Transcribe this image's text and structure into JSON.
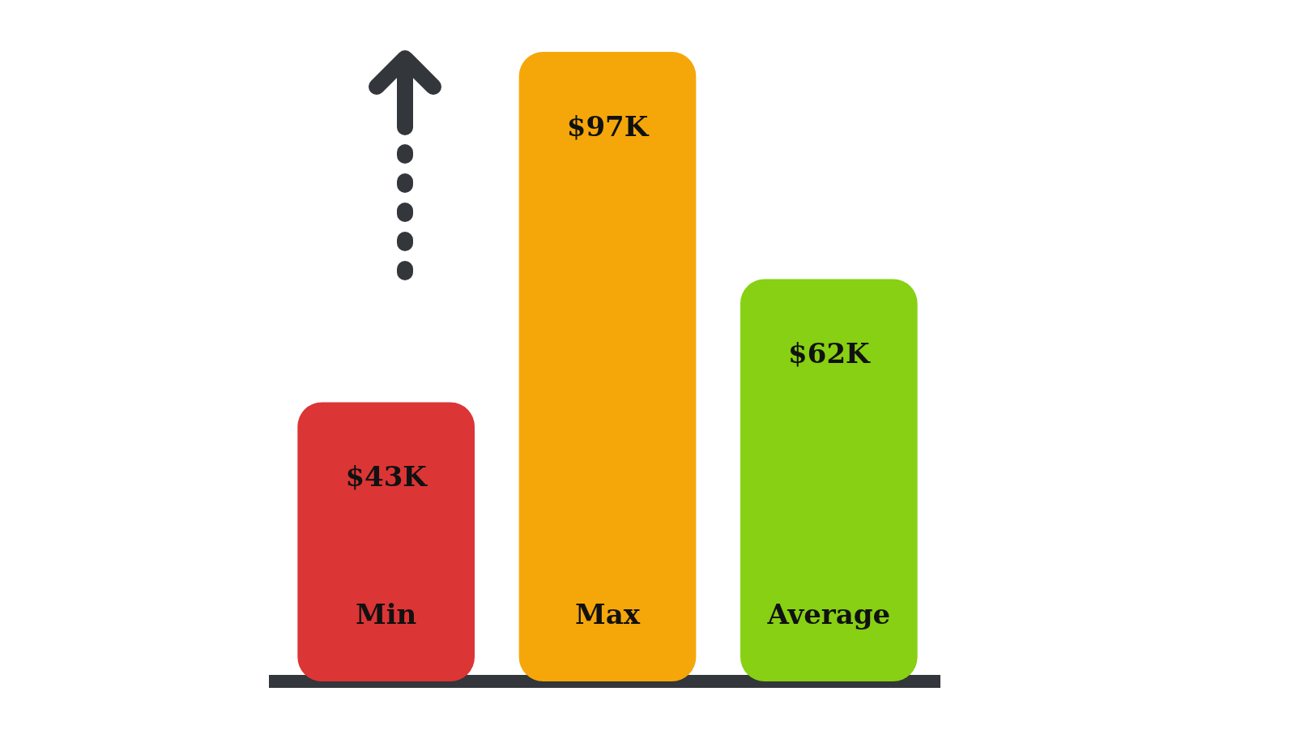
{
  "chart_data": {
    "type": "bar",
    "categories": [
      "Min",
      "Max",
      "Average"
    ],
    "values": [
      43,
      97,
      62
    ],
    "colors": [
      "#dc3535",
      "#f5a70a",
      "#87d013"
    ],
    "value_labels": [
      "$43K",
      "$97K",
      "$62K"
    ]
  }
}
